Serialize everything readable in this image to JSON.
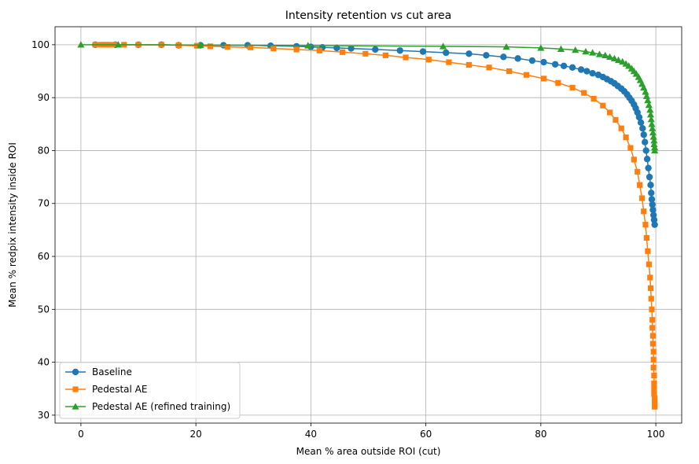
{
  "chart_data": {
    "type": "line",
    "title": "Intensity retention vs cut area",
    "xlabel": "Mean % area outside ROI (cut)",
    "ylabel": "Mean % redpix intensity inside ROI",
    "xlim": [
      -4.5,
      104.5
    ],
    "ylim": [
      28.5,
      103.4
    ],
    "xticks": [
      0,
      20,
      40,
      60,
      80,
      100
    ],
    "yticks": [
      30,
      40,
      50,
      60,
      70,
      80,
      90,
      100
    ],
    "grid": true,
    "legend_position": "lower-left",
    "series": [
      {
        "name": "Baseline",
        "color": "#1f77b4",
        "marker": "circle",
        "x": [
          2.5,
          6.0,
          10.0,
          14.0,
          17.0,
          20.8,
          24.8,
          29.0,
          33.0,
          37.5,
          40.0,
          42.0,
          44.5,
          47.0,
          51.2,
          55.5,
          59.5,
          63.5,
          67.5,
          70.5,
          73.5,
          76.0,
          78.5,
          80.5,
          82.5,
          84.0,
          85.5,
          87.0,
          88.0,
          89.0,
          90.0,
          90.8,
          91.5,
          92.2,
          92.8,
          93.4,
          94.0,
          94.5,
          95.0,
          95.4,
          95.8,
          96.2,
          96.5,
          96.8,
          97.1,
          97.4,
          97.7,
          97.9,
          98.1,
          98.3,
          98.5,
          98.7,
          98.9,
          99.1,
          99.2,
          99.3,
          99.4,
          99.5,
          99.6,
          99.7,
          99.8
        ],
        "y": [
          100.0,
          100.0,
          100.0,
          100.0,
          99.9,
          99.9,
          99.9,
          99.9,
          99.8,
          99.7,
          99.6,
          99.5,
          99.4,
          99.3,
          99.1,
          98.9,
          98.7,
          98.5,
          98.3,
          98.0,
          97.7,
          97.4,
          97.0,
          96.7,
          96.3,
          96.0,
          95.7,
          95.3,
          95.0,
          94.6,
          94.3,
          93.9,
          93.5,
          93.1,
          92.7,
          92.2,
          91.7,
          91.2,
          90.6,
          90.0,
          89.4,
          88.7,
          88.0,
          87.2,
          86.3,
          85.3,
          84.2,
          83.0,
          81.6,
          80.0,
          78.4,
          76.7,
          75.0,
          73.5,
          72.0,
          70.8,
          69.8,
          68.8,
          67.8,
          66.9,
          66.0
        ]
      },
      {
        "name": "Pedestal AE",
        "color": "#ff7f0e",
        "marker": "square",
        "x": [
          2.5,
          3.5,
          4.2,
          5.0,
          6.0,
          7.5,
          10.0,
          14.0,
          17.0,
          20.2,
          22.5,
          25.5,
          29.5,
          33.5,
          37.5,
          41.5,
          45.5,
          49.5,
          53.0,
          56.5,
          60.5,
          64.0,
          67.5,
          71.0,
          74.5,
          77.5,
          80.5,
          83.0,
          85.5,
          87.5,
          89.2,
          90.8,
          92.0,
          93.0,
          94.0,
          94.8,
          95.6,
          96.2,
          96.8,
          97.2,
          97.6,
          97.9,
          98.2,
          98.4,
          98.6,
          98.8,
          99.0,
          99.1,
          99.2,
          99.3,
          99.4,
          99.4,
          99.5,
          99.5,
          99.6,
          99.6,
          99.6,
          99.7,
          99.7,
          99.7,
          99.7,
          99.8,
          99.8,
          99.8,
          99.8
        ],
        "y": [
          100.0,
          100.0,
          100.0,
          100.0,
          100.0,
          100.0,
          100.0,
          100.0,
          99.9,
          99.8,
          99.7,
          99.6,
          99.5,
          99.3,
          99.1,
          98.9,
          98.6,
          98.3,
          98.0,
          97.6,
          97.2,
          96.7,
          96.2,
          95.7,
          95.0,
          94.3,
          93.6,
          92.8,
          91.9,
          90.9,
          89.8,
          88.5,
          87.2,
          85.8,
          84.2,
          82.5,
          80.5,
          78.3,
          76.0,
          73.5,
          71.0,
          68.5,
          66.0,
          63.5,
          61.0,
          58.5,
          56.0,
          54.0,
          52.0,
          50.0,
          48.0,
          46.5,
          45.0,
          43.5,
          42.0,
          40.5,
          39.0,
          37.5,
          36.0,
          35.0,
          34.0,
          33.2,
          32.5,
          32.0,
          31.6
        ]
      },
      {
        "name": "Pedestal AE (refined training)",
        "color": "#2ca02c",
        "marker": "triangle",
        "x": [
          0.0,
          6.5,
          20.8,
          39.5,
          63.0,
          74.0,
          80.0,
          83.5,
          86.0,
          87.8,
          89.0,
          90.2,
          91.2,
          92.0,
          92.8,
          93.5,
          94.2,
          94.8,
          95.3,
          95.8,
          96.2,
          96.6,
          97.0,
          97.3,
          97.6,
          97.9,
          98.2,
          98.4,
          98.6,
          98.8,
          99.0,
          99.1,
          99.2,
          99.3,
          99.4,
          99.5,
          99.6,
          99.7,
          99.7,
          99.8,
          99.8
        ],
        "y": [
          100.0,
          100.0,
          99.95,
          99.85,
          99.7,
          99.6,
          99.4,
          99.2,
          99.0,
          98.7,
          98.5,
          98.2,
          98.0,
          97.7,
          97.4,
          97.1,
          96.8,
          96.4,
          96.0,
          95.5,
          95.0,
          94.5,
          93.9,
          93.3,
          92.6,
          91.9,
          91.1,
          90.3,
          89.5,
          88.6,
          87.7,
          86.8,
          85.9,
          85.0,
          84.2,
          83.4,
          82.6,
          81.9,
          81.2,
          80.6,
          80.0
        ]
      }
    ]
  }
}
